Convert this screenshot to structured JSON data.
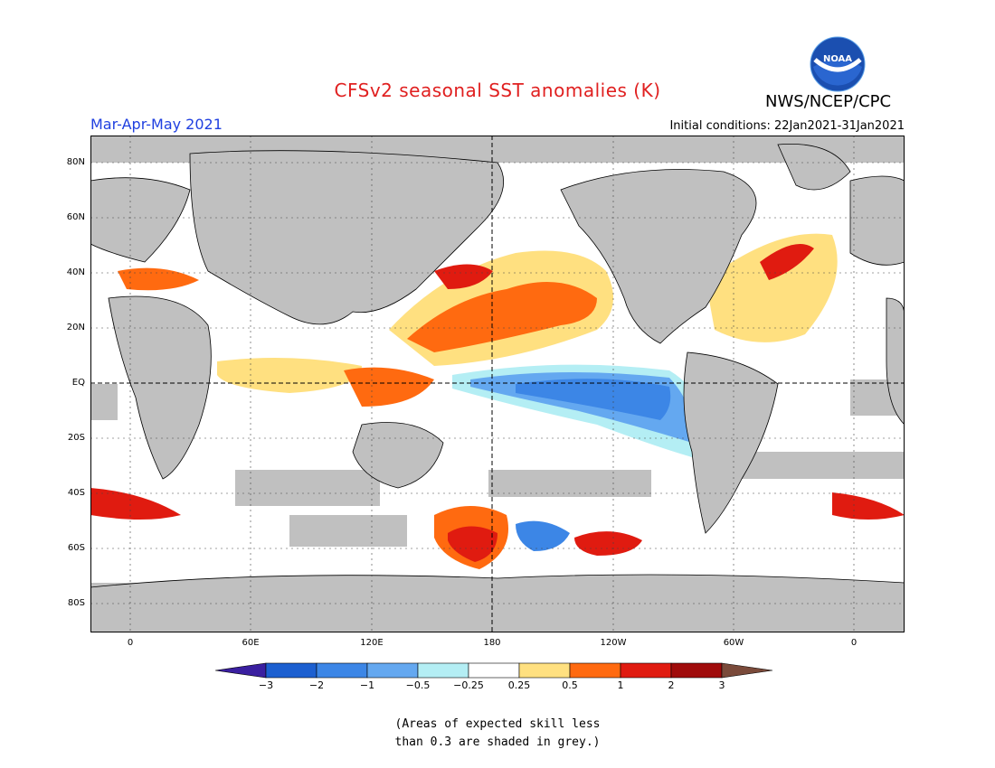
{
  "header": {
    "title": "CFSv2 seasonal SST anomalies (K)",
    "agency": "NWS/NCEP/CPC",
    "logo_text": "NOAA",
    "season": "Mar-Apr-May 2021",
    "initial_conditions": "Initial conditions: 22Jan2021-31Jan2021"
  },
  "map": {
    "lat_labels": [
      "80N",
      "60N",
      "40N",
      "20N",
      "EQ",
      "20S",
      "40S",
      "60S",
      "80S"
    ],
    "lon_labels": [
      "0",
      "60E",
      "120E",
      "180",
      "120W",
      "60W",
      "0"
    ],
    "colors": {
      "land": "#c0c0c0",
      "ocean": "#ffffff",
      "low_skill": "#c0c0c0"
    }
  },
  "colorbar": {
    "labels": [
      "-3",
      "-2",
      "-1",
      "-0.5",
      "-0.25",
      "0.25",
      "0.5",
      "1",
      "2",
      "3"
    ],
    "colors": [
      "#3a1fa0",
      "#1c5fd0",
      "#3c86e6",
      "#64a8f0",
      "#b4eef4",
      "#ffffff",
      "#ffe080",
      "#ff6a10",
      "#e01b10",
      "#a00b0b",
      "#7a4a3a"
    ]
  },
  "note": {
    "line1": "(Areas of expected skill less",
    "line2": "than 0.3 are shaded in grey.)"
  }
}
